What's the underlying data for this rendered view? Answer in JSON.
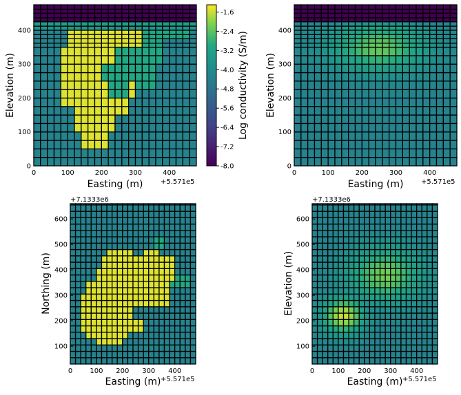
{
  "chart_data": [
    {
      "type": "heatmap",
      "panel": "top-left",
      "title": "",
      "xlabel": "Easting (m)",
      "ylabel": "Elevation (m)",
      "xlim": [
        0,
        480
      ],
      "ylim": [
        0,
        475
      ],
      "xticks": [
        "0",
        "100",
        "200",
        "300",
        "400"
      ],
      "yticks": [
        "0",
        "100",
        "200",
        "300",
        "400"
      ],
      "x_offset_label": "+5.571e5",
      "cells": {
        "dx": 20,
        "nx": 24,
        "bands": [
          [
            0,
            25
          ],
          [
            25,
            50
          ],
          [
            50,
            75
          ],
          [
            75,
            100
          ],
          [
            100,
            125
          ],
          [
            125,
            150
          ],
          [
            150,
            175
          ],
          [
            175,
            200
          ],
          [
            200,
            225
          ],
          [
            225,
            250
          ],
          [
            250,
            275
          ],
          [
            275,
            300
          ],
          [
            300,
            325
          ],
          [
            325,
            350
          ],
          [
            350,
            362
          ],
          [
            362,
            375
          ],
          [
            375,
            387
          ],
          [
            387,
            400
          ],
          [
            400,
            412
          ],
          [
            412,
            425
          ],
          [
            425,
            437
          ],
          [
            437,
            450
          ],
          [
            450,
            462
          ],
          [
            462,
            475
          ]
        ]
      },
      "values_note": "log conductivity (S/m) per cell",
      "background": -4.3,
      "air": -8.0,
      "ore_core": -1.5,
      "halo": -3.0,
      "colorbar": {
        "label": "Log conductivity (S/m)",
        "ticks": [
          "-1.6",
          "-2.4",
          "-3.2",
          "-4.0",
          "-4.8",
          "-5.6",
          "-6.4",
          "-7.2",
          "-8.0"
        ],
        "range": [
          -8.0,
          -1.3
        ],
        "colormap": "viridis"
      }
    },
    {
      "type": "heatmap",
      "panel": "top-right",
      "title": "",
      "xlabel": "Easting (m)",
      "ylabel": "Elevation (m)",
      "xlim": [
        0,
        480
      ],
      "ylim": [
        0,
        475
      ],
      "xticks": [
        "0",
        "100",
        "200",
        "300",
        "400"
      ],
      "yticks": [
        "0",
        "100",
        "200",
        "300",
        "400"
      ],
      "x_offset_label": "+5.571e5",
      "values_note": "smooth recovered model, log conductivity (S/m)",
      "background": -4.3,
      "air": -8.0,
      "peak": -2.3
    },
    {
      "type": "heatmap",
      "panel": "bottom-left",
      "title": "",
      "xlabel": "Easting (m)",
      "ylabel": "Northing (m)",
      "xlim": [
        0,
        480
      ],
      "ylim": [
        30,
        660
      ],
      "xticks": [
        "0",
        "100",
        "200",
        "300",
        "400"
      ],
      "yticks": [
        "100",
        "200",
        "300",
        "400",
        "500",
        "600"
      ],
      "x_offset_label": "+5.571e5",
      "y_offset_label": "+7.1333e6",
      "background": -4.3,
      "ore_core": -1.5,
      "halo": -3.0
    },
    {
      "type": "heatmap",
      "panel": "bottom-right",
      "title": "",
      "xlabel": "Easting (m)",
      "ylabel": "Elevation (m)",
      "xlim": [
        0,
        480
      ],
      "ylim": [
        30,
        660
      ],
      "xticks": [
        "0",
        "100",
        "200",
        "300",
        "400"
      ],
      "yticks": [
        "100",
        "200",
        "300",
        "400",
        "500",
        "600"
      ],
      "x_offset_label": "+5.571e5",
      "y_offset_label": "+7.1333e6",
      "background": -4.3,
      "peak": -2.2
    }
  ]
}
